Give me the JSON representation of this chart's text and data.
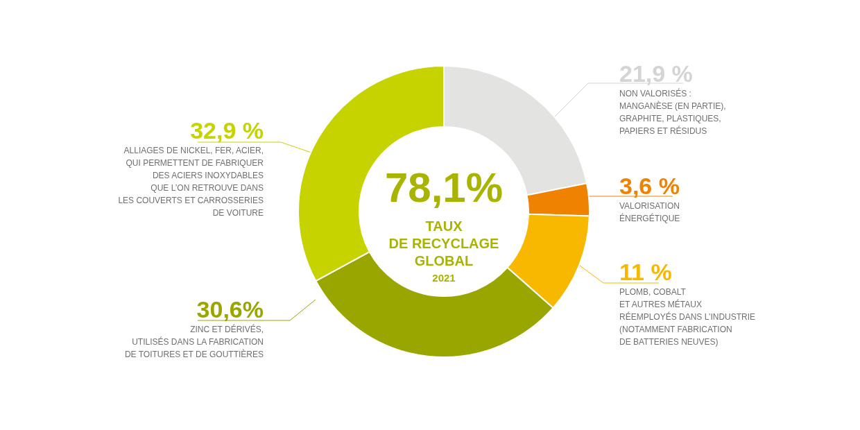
{
  "chart_data": {
    "type": "donut",
    "title": "78,1%",
    "subtitle": "TAUX\nDE RECYCLAGE\nGLOBAL",
    "annotations": [
      "2021"
    ],
    "categories": [
      "NON VALORISÉS :\nMANGANÈSE (EN PARTIE),\nGRAPHITE, PLASTIQUES,\nPAPIERS ET RÉSIDUS",
      "VALORISATION\nÉNERGÉTIQUE",
      "PLOMB, COBALT\nET AUTRES MÉTAUX\nRÉEMPLOYÉS DANS L’INDUSTRIE\n(NOTAMMENT FABRICATION\nDE BATTERIES NEUVES)",
      "ZINC ET DÉRIVÉS,\nUTILISÉS DANS LA FABRICATION\nDE TOITURES ET DE GOUTTIÈRES",
      "ALLIAGES DE NICKEL, FER, ACIER,\nQUI PERMETTENT DE FABRIQUER\nDES ACIERS INOXYDABLES\nQUE L’ON RETROUVE DANS\nLES COUVERTS ET CARROSSERIES\nDE VOITURE"
    ],
    "values": [
      21.9,
      3.6,
      11,
      30.6,
      32.9
    ],
    "value_labels": [
      "21,9 %",
      "3,6 %",
      "11 %",
      "30,6%",
      "32,9 %"
    ],
    "colors": [
      "#e3e3e2",
      "#ef8200",
      "#f8b800",
      "#9aa600",
      "#c6d300"
    ]
  }
}
